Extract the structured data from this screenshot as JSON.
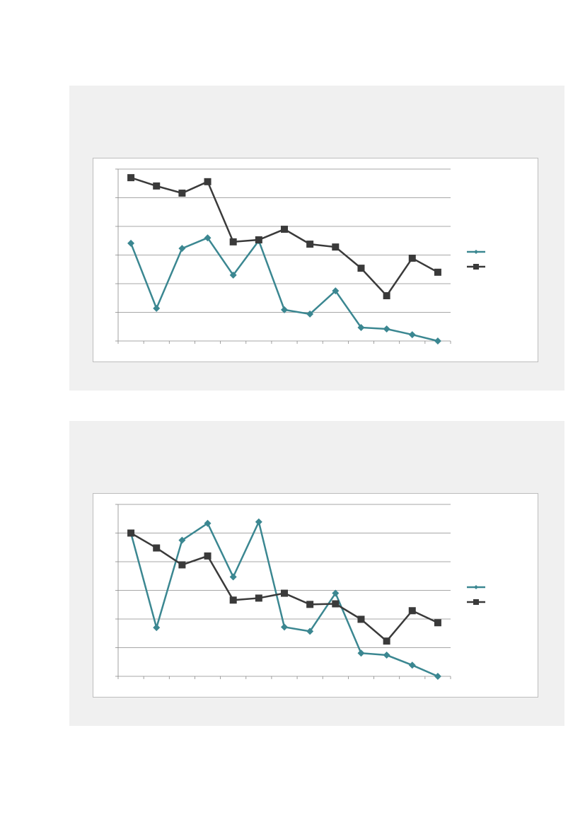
{
  "chart_data": [
    {
      "type": "line",
      "categories": [
        null,
        null,
        null,
        null,
        null,
        null,
        null,
        null,
        null,
        null,
        null,
        null,
        null
      ],
      "series": [
        {
          "color": "#3b8791",
          "marker": "diamond",
          "values": [
            3.41,
            1.14,
            3.23,
            3.6,
            2.3,
            3.5,
            1.09,
            0.94,
            1.75,
            0.47,
            0.42,
            0.22,
            0
          ]
        },
        {
          "color": "#3a3a3a",
          "marker": "square",
          "values": [
            5.7,
            5.41,
            5.16,
            5.56,
            3.46,
            3.53,
            3.9,
            3.38,
            3.28,
            2.54,
            1.58,
            2.89,
            2.4
          ]
        }
      ],
      "ylim": [
        0,
        6
      ],
      "yticks": [
        0,
        1,
        2,
        3,
        4,
        5,
        6
      ],
      "grid": true
    },
    {
      "type": "line",
      "categories": [
        null,
        null,
        null,
        null,
        null,
        null,
        null,
        null,
        null,
        null,
        null,
        null,
        null
      ],
      "series": [
        {
          "color": "#3b8791",
          "marker": "diamond",
          "values": [
            5.0,
            1.7,
            4.75,
            5.34,
            3.47,
            5.39,
            1.72,
            1.57,
            2.9,
            0.81,
            0.74,
            0.39,
            0
          ]
        },
        {
          "color": "#3a3a3a",
          "marker": "square",
          "values": [
            5.0,
            4.48,
            3.89,
            4.2,
            2.66,
            2.73,
            2.9,
            2.51,
            2.53,
            1.99,
            1.23,
            2.29,
            1.87
          ]
        }
      ],
      "ylim": [
        0,
        6
      ],
      "yticks": [
        0,
        1,
        2,
        3,
        4,
        5,
        6
      ],
      "grid": true
    }
  ]
}
